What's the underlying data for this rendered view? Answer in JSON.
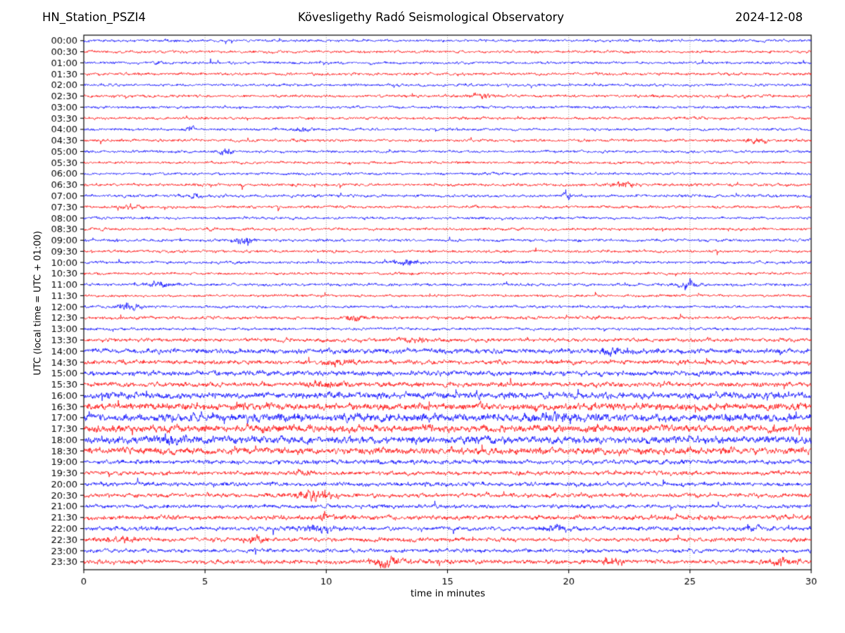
{
  "header": {
    "station": "HN_Station_PSZI4",
    "observatory": "Kövesligethy Radó Seismological Observatory",
    "date": "2024-12-08"
  },
  "axes": {
    "xlabel": "time in minutes",
    "ylabel": "UTC (local time = UTC + 01:00)"
  },
  "colors": {
    "blue": "#0000ff",
    "red": "#ff0000",
    "grid": "#808080",
    "frame": "#000000",
    "text": "#000000",
    "background": "#ffffff"
  },
  "chart_data": {
    "type": "line",
    "subtype": "helicorder-drum-plot",
    "x_min": 0,
    "x_max": 30,
    "x_ticks": [
      0,
      5,
      10,
      15,
      20,
      25,
      30
    ],
    "grid_minutes": [
      5,
      10,
      15,
      20,
      25
    ],
    "minutes_per_row": 30,
    "rows": [
      {
        "label": "00:00",
        "color": "blue",
        "amp": 1.9,
        "events": []
      },
      {
        "label": "00:30",
        "color": "red",
        "amp": 1.9,
        "events": []
      },
      {
        "label": "01:00",
        "color": "blue",
        "amp": 1.9,
        "events": []
      },
      {
        "label": "01:30",
        "color": "red",
        "amp": 2.0,
        "events": []
      },
      {
        "label": "02:00",
        "color": "blue",
        "amp": 1.9,
        "events": []
      },
      {
        "label": "02:30",
        "color": "red",
        "amp": 2.0,
        "events": [
          {
            "t": 16.4,
            "w": 0.3,
            "a": 1.4
          }
        ]
      },
      {
        "label": "03:00",
        "color": "blue",
        "amp": 1.9,
        "events": []
      },
      {
        "label": "03:30",
        "color": "red",
        "amp": 2.0,
        "events": []
      },
      {
        "label": "04:00",
        "color": "blue",
        "amp": 1.9,
        "events": [
          {
            "t": 4.4,
            "w": 0.12,
            "a": 2.6
          },
          {
            "t": 9.0,
            "w": 0.3,
            "a": 1.1
          }
        ]
      },
      {
        "label": "04:30",
        "color": "red",
        "amp": 2.0,
        "events": [
          {
            "t": 27.8,
            "w": 0.25,
            "a": 1.3
          }
        ]
      },
      {
        "label": "05:00",
        "color": "blue",
        "amp": 1.9,
        "events": [
          {
            "t": 5.8,
            "w": 0.2,
            "a": 1.5
          }
        ]
      },
      {
        "label": "05:30",
        "color": "red",
        "amp": 1.9,
        "events": []
      },
      {
        "label": "06:00",
        "color": "blue",
        "amp": 1.9,
        "events": []
      },
      {
        "label": "06:30",
        "color": "red",
        "amp": 2.0,
        "events": [
          {
            "t": 22.4,
            "w": 0.3,
            "a": 1.7
          }
        ]
      },
      {
        "label": "07:00",
        "color": "blue",
        "amp": 2.1,
        "events": [
          {
            "t": 4.6,
            "w": 0.15,
            "a": 1.4
          },
          {
            "t": 19.9,
            "w": 0.1,
            "a": 3.5
          }
        ]
      },
      {
        "label": "07:30",
        "color": "red",
        "amp": 2.0,
        "events": [
          {
            "t": 2.0,
            "w": 0.35,
            "a": 0.9
          }
        ]
      },
      {
        "label": "08:00",
        "color": "blue",
        "amp": 1.9,
        "events": []
      },
      {
        "label": "08:30",
        "color": "red",
        "amp": 2.0,
        "events": []
      },
      {
        "label": "09:00",
        "color": "blue",
        "amp": 2.0,
        "events": [
          {
            "t": 6.6,
            "w": 0.25,
            "a": 2.6
          }
        ]
      },
      {
        "label": "09:30",
        "color": "red",
        "amp": 2.0,
        "events": []
      },
      {
        "label": "10:00",
        "color": "blue",
        "amp": 2.0,
        "events": [
          {
            "t": 13.3,
            "w": 0.35,
            "a": 2.0
          }
        ]
      },
      {
        "label": "10:30",
        "color": "red",
        "amp": 1.9,
        "events": []
      },
      {
        "label": "11:00",
        "color": "blue",
        "amp": 2.0,
        "events": [
          {
            "t": 3.2,
            "w": 0.4,
            "a": 1.5
          },
          {
            "t": 24.9,
            "w": 0.3,
            "a": 2.5
          }
        ]
      },
      {
        "label": "11:30",
        "color": "red",
        "amp": 1.9,
        "events": []
      },
      {
        "label": "12:00",
        "color": "blue",
        "amp": 2.0,
        "events": [
          {
            "t": 1.9,
            "w": 0.3,
            "a": 2.1
          }
        ]
      },
      {
        "label": "12:30",
        "color": "red",
        "amp": 2.3,
        "events": [
          {
            "t": 11.2,
            "w": 0.25,
            "a": 1.5
          }
        ]
      },
      {
        "label": "13:00",
        "color": "blue",
        "amp": 2.0,
        "events": []
      },
      {
        "label": "13:30",
        "color": "red",
        "amp": 2.7,
        "events": [
          {
            "t": 13.5,
            "w": 0.5,
            "a": 0.7
          }
        ]
      },
      {
        "label": "14:00",
        "color": "blue",
        "amp": 3.6,
        "events": [
          {
            "t": 22.0,
            "w": 0.5,
            "a": 0.7
          }
        ]
      },
      {
        "label": "14:30",
        "color": "red",
        "amp": 3.2,
        "events": [
          {
            "t": 10.5,
            "w": 0.35,
            "a": 0.8
          }
        ]
      },
      {
        "label": "15:00",
        "color": "blue",
        "amp": 3.6,
        "events": []
      },
      {
        "label": "15:30",
        "color": "red",
        "amp": 3.4,
        "events": [
          {
            "t": 10.0,
            "w": 0.5,
            "a": 0.6
          }
        ]
      },
      {
        "label": "16:00",
        "color": "blue",
        "amp": 4.6,
        "events": []
      },
      {
        "label": "16:30",
        "color": "red",
        "amp": 5.0,
        "events": []
      },
      {
        "label": "17:00",
        "color": "blue",
        "amp": 5.6,
        "events": [
          {
            "t": 19.5,
            "w": 0.6,
            "a": 0.5
          }
        ]
      },
      {
        "label": "17:30",
        "color": "red",
        "amp": 5.2,
        "events": []
      },
      {
        "label": "18:00",
        "color": "blue",
        "amp": 5.2,
        "events": [
          {
            "t": 3.5,
            "w": 0.5,
            "a": 0.5
          }
        ]
      },
      {
        "label": "18:30",
        "color": "red",
        "amp": 4.8,
        "events": []
      },
      {
        "label": "19:00",
        "color": "blue",
        "amp": 3.2,
        "events": []
      },
      {
        "label": "19:30",
        "color": "red",
        "amp": 3.0,
        "events": [
          {
            "t": 9.0,
            "w": 0.4,
            "a": 0.7
          }
        ]
      },
      {
        "label": "20:00",
        "color": "blue",
        "amp": 3.0,
        "events": []
      },
      {
        "label": "20:30",
        "color": "red",
        "amp": 3.0,
        "events": [
          {
            "t": 9.6,
            "w": 0.45,
            "a": 2.2
          }
        ]
      },
      {
        "label": "21:00",
        "color": "blue",
        "amp": 2.8,
        "events": []
      },
      {
        "label": "21:30",
        "color": "red",
        "amp": 3.2,
        "events": [
          {
            "t": 10.0,
            "w": 0.3,
            "a": 0.8
          }
        ]
      },
      {
        "label": "22:00",
        "color": "blue",
        "amp": 3.0,
        "events": [
          {
            "t": 9.7,
            "w": 0.5,
            "a": 1.2
          },
          {
            "t": 19.5,
            "w": 0.4,
            "a": 1.0
          },
          {
            "t": 27.5,
            "w": 0.4,
            "a": 0.8
          }
        ]
      },
      {
        "label": "22:30",
        "color": "red",
        "amp": 3.0,
        "events": [
          {
            "t": 1.5,
            "w": 0.5,
            "a": 1.0
          },
          {
            "t": 7.0,
            "w": 0.3,
            "a": 0.8
          }
        ]
      },
      {
        "label": "23:00",
        "color": "blue",
        "amp": 2.8,
        "events": []
      },
      {
        "label": "23:30",
        "color": "red",
        "amp": 3.2,
        "events": [
          {
            "t": 12.6,
            "w": 0.45,
            "a": 1.9
          },
          {
            "t": 21.8,
            "w": 0.4,
            "a": 0.8
          },
          {
            "t": 28.8,
            "w": 0.5,
            "a": 1.1
          }
        ]
      }
    ]
  }
}
